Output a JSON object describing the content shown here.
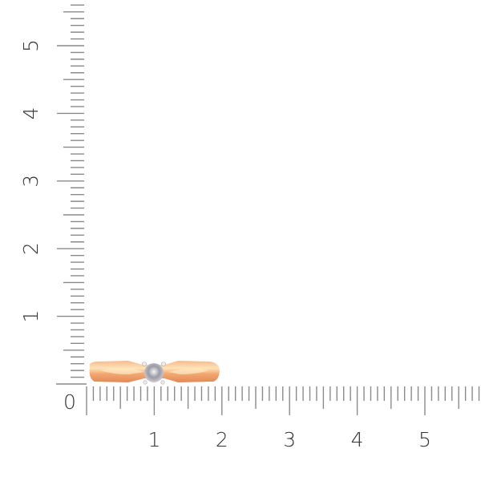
{
  "ruler": {
    "unit": "cm",
    "horizontal_labels": [
      "0",
      "1",
      "2",
      "3",
      "4",
      "5"
    ],
    "vertical_labels": [
      "1",
      "2",
      "3",
      "4",
      "5"
    ],
    "tick_color": "#8a8a8a",
    "label_color": "#333333"
  },
  "product": {
    "name_icon": "ring-with-solitaire-diamond",
    "metal_color": "#f0a878",
    "metal_highlight": "#ffe0b0",
    "stone_color": "#c8c8d0"
  }
}
